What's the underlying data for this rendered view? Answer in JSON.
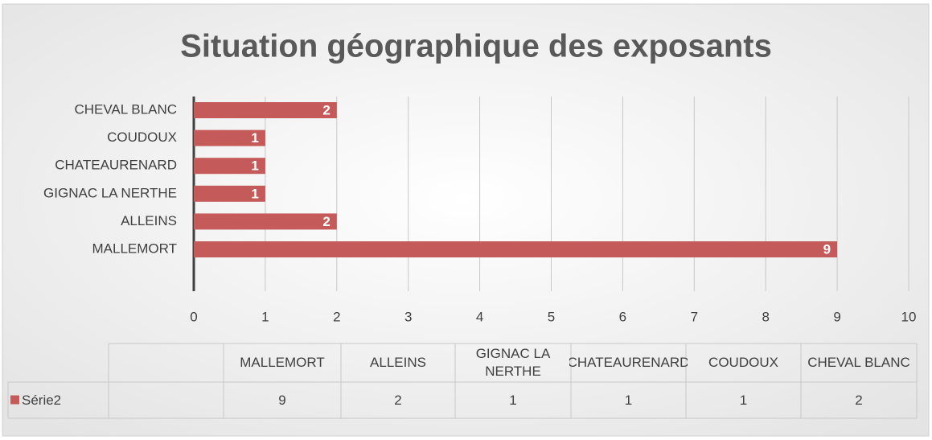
{
  "chart_data": {
    "type": "bar",
    "orientation": "horizontal",
    "title": "Situation géographique des exposants",
    "categories": [
      "MALLEMORT",
      "ALLEINS",
      "GIGNAC LA NERTHE",
      "CHATEAURENARD",
      "COUDOUX",
      "CHEVAL BLANC"
    ],
    "series": [
      {
        "name": "Série2",
        "color": "#c55a5a",
        "values": [
          9,
          2,
          1,
          1,
          1,
          2
        ]
      }
    ],
    "xlim": [
      0,
      10
    ],
    "xticks": [
      0,
      1,
      2,
      3,
      4,
      5,
      6,
      7,
      8,
      9,
      10
    ],
    "grid": true,
    "data_table": true
  }
}
